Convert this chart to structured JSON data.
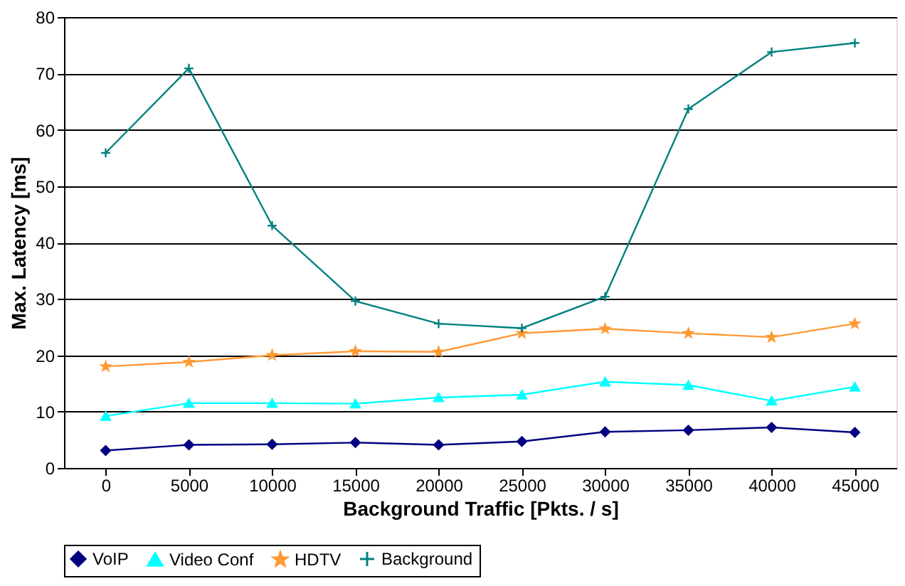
{
  "chart_data": {
    "type": "line",
    "xlabel": "Background Traffic [Pkts. / s]",
    "ylabel": "Max. Latency [ms]",
    "categories": [
      "0",
      "5000",
      "10000",
      "15000",
      "20000",
      "25000",
      "30000",
      "35000",
      "40000",
      "45000"
    ],
    "series": [
      {
        "name": "VoIP",
        "color": "#000080",
        "marker": "diamond",
        "values": [
          3.1,
          4.1,
          4.2,
          4.5,
          4.1,
          4.7,
          6.4,
          6.7,
          7.2,
          6.3
        ]
      },
      {
        "name": "Video Conf",
        "color": "#00ffff",
        "marker": "triangle",
        "values": [
          9.2,
          11.5,
          11.5,
          11.4,
          12.5,
          13.0,
          15.3,
          14.7,
          11.9,
          14.4
        ]
      },
      {
        "name": "HDTV",
        "color": "#ff9933",
        "marker": "star",
        "values": [
          18.0,
          18.8,
          20.0,
          20.7,
          20.6,
          23.9,
          24.7,
          23.9,
          23.2,
          25.6
        ]
      },
      {
        "name": "Background",
        "color": "#008080",
        "marker": "cross",
        "values": [
          55.9,
          70.9,
          43.0,
          29.6,
          25.6,
          24.8,
          30.4,
          63.7,
          73.8,
          75.4
        ]
      }
    ],
    "ylim": [
      0,
      80
    ],
    "yticks": [
      0,
      10,
      20,
      30,
      40,
      50,
      60,
      70,
      80
    ],
    "grid": "y",
    "legend": "bottom",
    "line_style": "solid"
  }
}
